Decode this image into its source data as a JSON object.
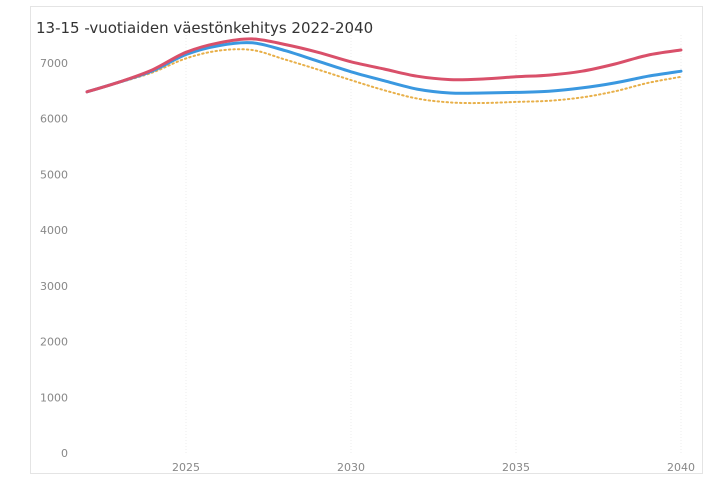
{
  "chart_data": {
    "type": "line",
    "title": "13-15 -vuotiaiden väestönkehitys 2022-2040",
    "xlabel": "",
    "ylabel": "",
    "xlim": [
      2022,
      2040
    ],
    "ylim": [
      0,
      7500
    ],
    "x_ticks": [
      2025,
      2030,
      2035,
      2040
    ],
    "y_ticks": [
      0,
      1000,
      2000,
      3000,
      4000,
      5000,
      6000,
      7000
    ],
    "grid": "vertical",
    "legend": "none",
    "x": [
      2022,
      2023,
      2024,
      2025,
      2026,
      2027,
      2028,
      2029,
      2030,
      2031,
      2032,
      2033,
      2034,
      2035,
      2036,
      2037,
      2038,
      2039,
      2040
    ],
    "series": [
      {
        "color": "#d9506a",
        "style": "solid",
        "values": [
          6480,
          6660,
          6880,
          7190,
          7360,
          7430,
          7330,
          7190,
          7020,
          6890,
          6760,
          6700,
          6710,
          6750,
          6780,
          6850,
          6980,
          7140,
          7230
        ]
      },
      {
        "color": "#3a98e0",
        "style": "solid",
        "values": [
          6480,
          6660,
          6860,
          7150,
          7310,
          7360,
          7220,
          7030,
          6840,
          6680,
          6530,
          6460,
          6460,
          6470,
          6490,
          6550,
          6640,
          6760,
          6850
        ]
      },
      {
        "color": "#e8b04a",
        "style": "dotted",
        "values": [
          6480,
          6650,
          6830,
          7080,
          7220,
          7230,
          7060,
          6880,
          6690,
          6510,
          6360,
          6290,
          6280,
          6300,
          6320,
          6380,
          6490,
          6640,
          6750
        ]
      }
    ]
  }
}
